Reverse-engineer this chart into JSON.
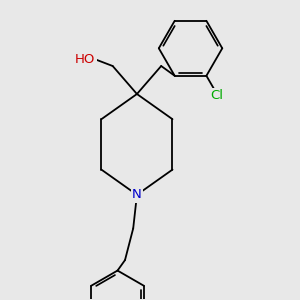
{
  "bg_color": "#e8e8e8",
  "bond_color": "#000000",
  "atom_colors": {
    "O": "#cc0000",
    "N": "#0000cc",
    "Cl": "#00aa00"
  },
  "font_size": 9.5,
  "line_width": 1.3,
  "figsize": [
    3.0,
    3.0
  ],
  "dpi": 100
}
